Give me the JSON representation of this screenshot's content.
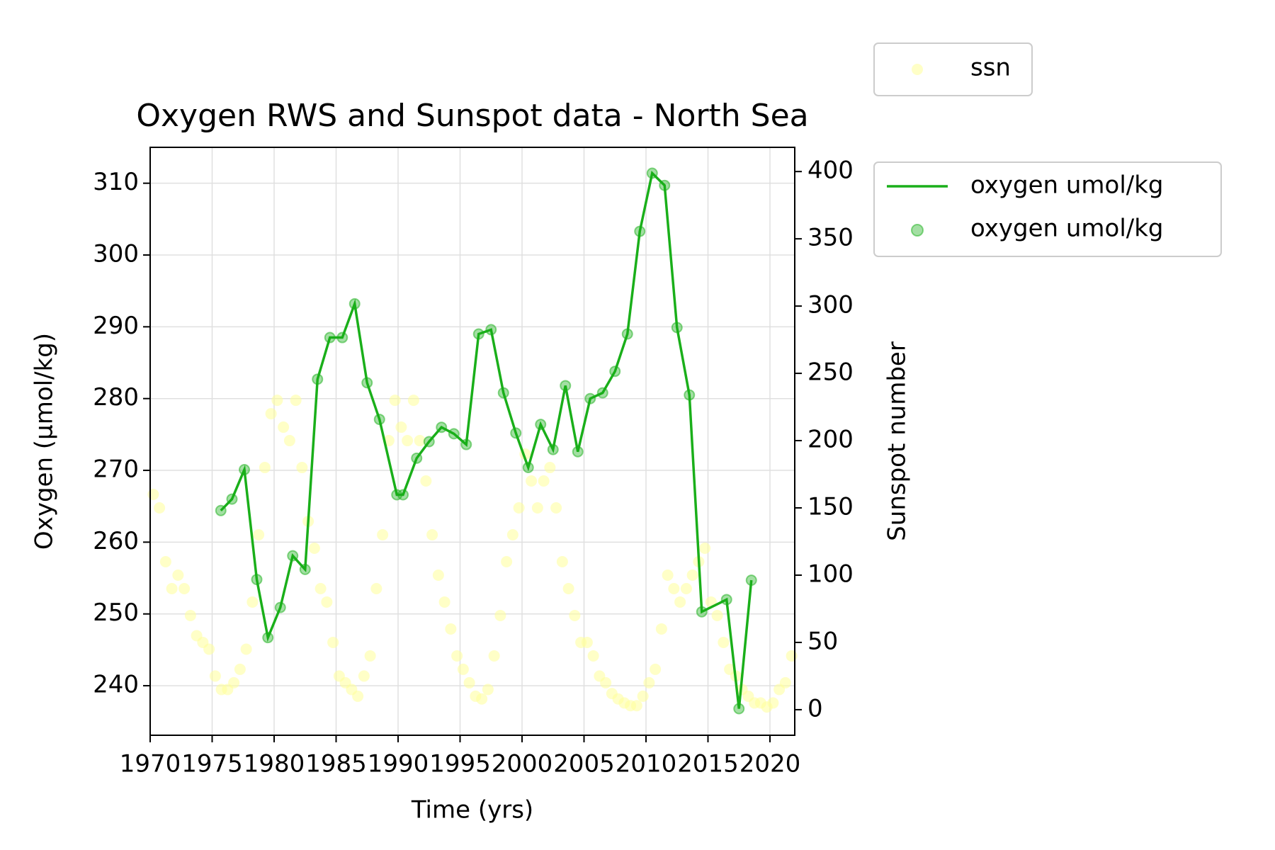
{
  "chart_data": {
    "type": "line",
    "title": "Oxygen RWS and Sunspot data - North Sea",
    "xlabel": "Time (yrs)",
    "ylabel": "Oxygen (µmol/kg)",
    "y2label": "Sunspot number",
    "xlim": [
      1970,
      2022
    ],
    "xticks": [
      1970,
      1975,
      1980,
      1985,
      1990,
      1995,
      2000,
      2005,
      2010,
      2015,
      2020
    ],
    "ylim": [
      233.1,
      315
    ],
    "yticks": [
      240,
      250,
      260,
      270,
      280,
      290,
      300,
      310
    ],
    "y2lim": [
      -19,
      418
    ],
    "y2ticks": [
      0,
      50,
      100,
      150,
      200,
      250,
      300,
      350,
      400
    ],
    "grid": true,
    "series": [
      {
        "name": "ssn",
        "style": "scatter",
        "axis": "y2",
        "color": "#ffff99",
        "x": [
          1970.25,
          1970.75,
          1971.25,
          1971.75,
          1972.25,
          1972.75,
          1973.25,
          1973.75,
          1974.25,
          1974.75,
          1975.25,
          1975.75,
          1976.25,
          1976.75,
          1977.25,
          1977.75,
          1978.25,
          1978.75,
          1979.25,
          1979.75,
          1980.25,
          1980.75,
          1981.25,
          1981.75,
          1982.25,
          1982.75,
          1983.25,
          1983.75,
          1984.25,
          1984.75,
          1985.25,
          1985.75,
          1986.25,
          1986.75,
          1987.25,
          1987.75,
          1988.25,
          1988.75,
          1989.25,
          1989.75,
          1990.25,
          1990.75,
          1991.25,
          1991.75,
          1992.25,
          1992.75,
          1993.25,
          1993.75,
          1994.25,
          1994.75,
          1995.25,
          1995.75,
          1996.25,
          1996.75,
          1997.25,
          1997.75,
          1998.25,
          1998.75,
          1999.25,
          1999.75,
          2000.25,
          2000.75,
          2001.25,
          2001.75,
          2002.25,
          2002.75,
          2003.25,
          2003.75,
          2004.25,
          2004.75,
          2005.25,
          2005.75,
          2006.25,
          2006.75,
          2007.25,
          2007.75,
          2008.25,
          2008.75,
          2009.25,
          2009.75,
          2010.25,
          2010.75,
          2011.25,
          2011.75,
          2012.25,
          2012.75,
          2013.25,
          2013.75,
          2014.25,
          2014.75,
          2015.25,
          2015.75,
          2016.25,
          2016.75,
          2017.25,
          2017.75,
          2018.25,
          2018.75,
          2019.25,
          2019.75,
          2020.25,
          2020.75,
          2021.25,
          2021.75
        ],
        "values": [
          160,
          150,
          110,
          90,
          100,
          90,
          70,
          55,
          50,
          45,
          25,
          15,
          15,
          20,
          30,
          45,
          80,
          130,
          180,
          220,
          230,
          210,
          200,
          230,
          180,
          140,
          120,
          90,
          80,
          50,
          25,
          20,
          15,
          10,
          25,
          40,
          90,
          130,
          200,
          230,
          210,
          200,
          230,
          200,
          170,
          130,
          100,
          80,
          60,
          40,
          30,
          20,
          10,
          8,
          15,
          40,
          70,
          110,
          130,
          150,
          190,
          170,
          150,
          170,
          180,
          150,
          110,
          90,
          70,
          50,
          50,
          40,
          25,
          20,
          12,
          8,
          5,
          3,
          3,
          10,
          20,
          30,
          60,
          100,
          90,
          80,
          90,
          100,
          110,
          120,
          80,
          70,
          50,
          30,
          25,
          15,
          10,
          5,
          5,
          2,
          5,
          15,
          20,
          40
        ]
      },
      {
        "name": "oxygen umol/kg",
        "style": "line-markers",
        "axis": "y",
        "color": "#1aaf1a",
        "x": [
          1975.7,
          1976.6,
          1977.6,
          1978.6,
          1979.5,
          1980.5,
          1981.5,
          1982.5,
          1983.5,
          1984.5,
          1985.5,
          1986.5,
          1987.5,
          1988.5,
          1989.9,
          1990.4,
          1991.5,
          1992.5,
          1993.5,
          1994.5,
          1995.5,
          1996.5,
          1997.5,
          1998.5,
          1999.5,
          2000.5,
          2001.5,
          2002.5,
          2003.5,
          2004.5,
          2005.5,
          2006.5,
          2007.5,
          2008.5,
          2009.5,
          2010.5,
          2011.5,
          2012.5,
          2013.5,
          2014.5,
          2016.5,
          2017.5,
          2018.5
        ],
        "values": [
          264.4,
          266.0,
          270.1,
          254.8,
          246.7,
          250.9,
          258.1,
          256.2,
          282.7,
          288.5,
          288.5,
          293.2,
          282.2,
          277.1,
          266.6,
          266.6,
          271.7,
          274.0,
          276.0,
          275.1,
          273.6,
          289.0,
          289.6,
          280.8,
          275.2,
          270.4,
          276.4,
          272.9,
          281.8,
          272.6,
          280.0,
          280.8,
          283.8,
          289.0,
          303.3,
          311.4,
          309.7,
          289.9,
          280.5,
          250.3,
          252.0,
          236.8,
          254.7
        ]
      }
    ]
  }
}
